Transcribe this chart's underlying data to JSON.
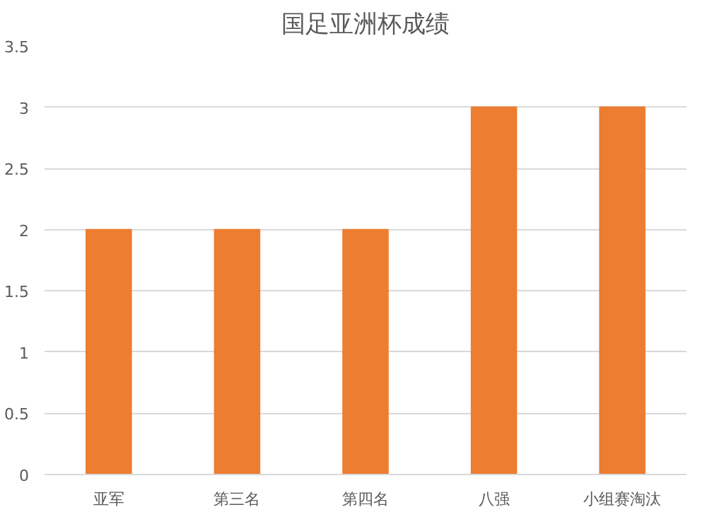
{
  "chart_data": {
    "type": "bar",
    "title": "国足亚洲杯成绩",
    "categories": [
      "亚军",
      "第三名",
      "第四名",
      "八强",
      "小组赛淘汰"
    ],
    "values": [
      2,
      2,
      2,
      3,
      3
    ],
    "color": "#ed7d31",
    "ylim": [
      0,
      3.5
    ],
    "yticks": [
      0,
      0.5,
      1,
      1.5,
      2,
      2.5,
      3,
      3.5
    ],
    "grid": "y"
  }
}
